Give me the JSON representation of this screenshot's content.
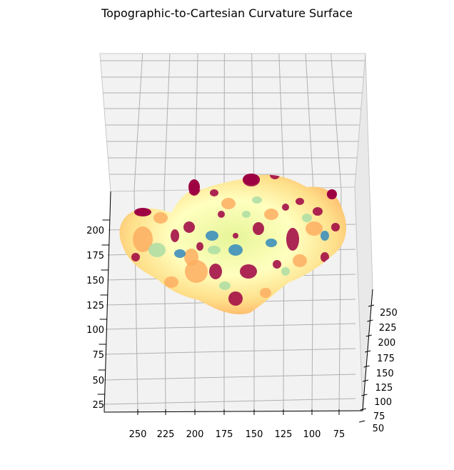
{
  "chart_data": {
    "type": "surface-3d",
    "title": "Topographic-to-Cartesian Curvature Surface",
    "xlabel": "",
    "ylabel": "",
    "zlabel": "",
    "colormap": "Spectral",
    "grid": true,
    "x_axis": {
      "ticks": [
        250,
        225,
        200,
        175,
        150,
        125,
        100,
        75
      ]
    },
    "y_axis": {
      "ticks": [
        250,
        225,
        200,
        175,
        150,
        125,
        100,
        75,
        50
      ]
    },
    "z_axis": {
      "ticks": [
        200,
        175,
        150,
        125,
        100,
        75,
        50,
        25
      ]
    },
    "colors": {
      "pane": "#f2f2f2",
      "grid": "#b0b0b0",
      "low": "#3288bd",
      "mid_low": "#abdda4",
      "mid": "#ffffbf",
      "mid_high": "#fdae61",
      "high": "#9e0142"
    }
  }
}
